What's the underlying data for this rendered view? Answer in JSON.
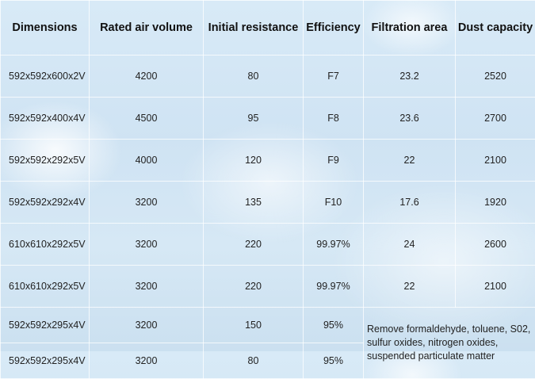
{
  "headers": [
    "Dimensions",
    "Rated air volume",
    "Initial resistance",
    "Efficiency",
    "Filtration area",
    "Dust capacity"
  ],
  "rows": [
    [
      "592x592x600x2V",
      "4200",
      "80",
      "F7",
      "23.2",
      "2520"
    ],
    [
      "592x592x400x4V",
      "4500",
      "95",
      "F8",
      "23.6",
      "2700"
    ],
    [
      "592x592x292x5V",
      "4000",
      "120",
      "F9",
      "22",
      "2100"
    ],
    [
      "592x592x292x4V",
      "3200",
      "135",
      "F10",
      "17.6",
      "1920"
    ],
    [
      "610x610x292x5V",
      "3200",
      "220",
      "99.97%",
      "24",
      "2600"
    ],
    [
      "610x610x292x5V",
      "3200",
      "220",
      "99.97%",
      "22",
      "2100"
    ],
    [
      "592x592x295x4V",
      "3200",
      "150",
      "95%"
    ],
    [
      "592x592x295x4V",
      "3200",
      "80",
      "95%"
    ]
  ],
  "note_lines": [
    "Remove formaldehyde, toluene, S02,",
    "sulfur oxides, nitrogen oxides,",
    "suspended particulate matter"
  ]
}
